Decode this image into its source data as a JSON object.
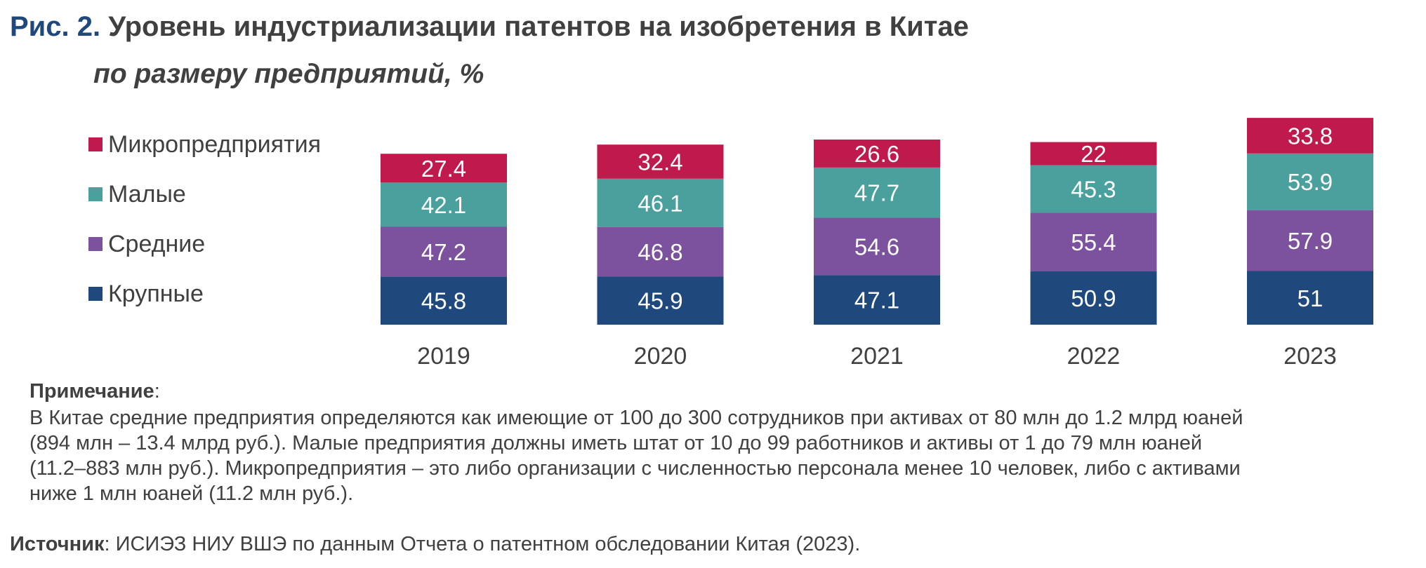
{
  "figure": {
    "number": "Рис. 2.",
    "title": "Уровень индустриализации патентов на изобретения в Китае",
    "subtitle": "по размеру предприятий, %"
  },
  "chart_data": {
    "type": "bar",
    "stacked": true,
    "categories": [
      "2019",
      "2020",
      "2021",
      "2022",
      "2023"
    ],
    "series": [
      {
        "name": "Крупные",
        "color": "#1F497D",
        "values": [
          45.8,
          45.9,
          47.1,
          50.9,
          51
        ]
      },
      {
        "name": "Средние",
        "color": "#7C519E",
        "values": [
          47.2,
          46.8,
          54.6,
          55.4,
          57.9
        ]
      },
      {
        "name": "Малые",
        "color": "#4AA09D",
        "values": [
          42.1,
          46.1,
          47.7,
          45.3,
          53.9
        ]
      },
      {
        "name": "Микропредприятия",
        "color": "#C0194B",
        "values": [
          27.4,
          32.4,
          26.6,
          22,
          33.8
        ]
      }
    ],
    "legend": [
      "Микропредприятия",
      "Малые",
      "Средние",
      "Крупные"
    ],
    "legend_position": "left",
    "data_labels": true,
    "grid": false,
    "yaxis_visible": false
  },
  "note": {
    "label": "Примечание",
    "lines": [
      "В Китае средние предприятия определяются как имеющие от 100 до 300 сотрудников при активах от 80 млн до 1.2 млрд юаней",
      "(894 млн – 13.4 млрд руб.). Малые предприятия должны иметь штат от 10 до 99 работников и активы от 1 до 79 млн юаней",
      "(11.2–883 млн руб.). Микропредприятия – это либо организации с численностью персонала менее 10 человек, либо с активами",
      "ниже 1 млн юаней (11.2 млн руб.)."
    ]
  },
  "source": {
    "label": "Источник",
    "text": "ИСИЭЗ НИУ ВШЭ по данным Отчета о патентном обследовании Китая (2023)."
  }
}
